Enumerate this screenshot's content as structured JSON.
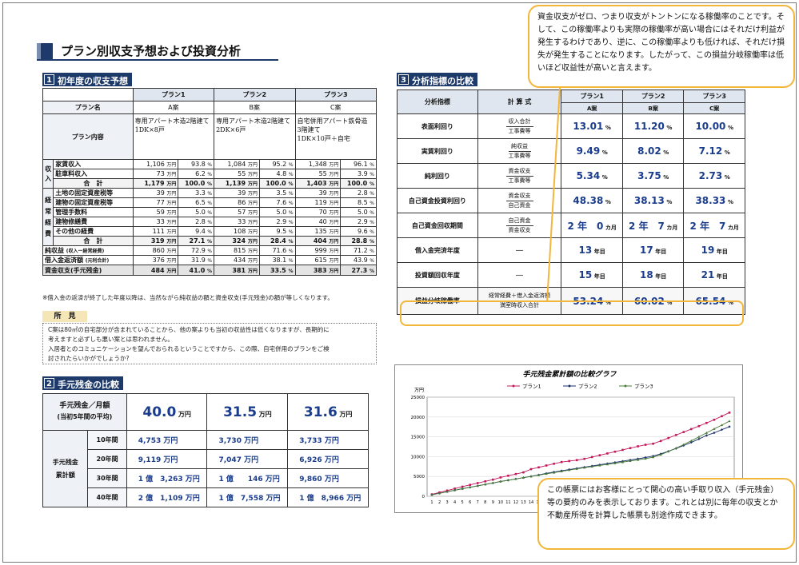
{
  "page_title": "プラン別収支予想および投資分析",
  "sec1": {
    "num": "1",
    "title": "初年度の収支予想"
  },
  "sec2": {
    "num": "2",
    "title": "手元残金の比較"
  },
  "sec3": {
    "num": "3",
    "title": "分析指標の比較"
  },
  "t1": {
    "plans": [
      "プラン1",
      "プラン2",
      "プラン3"
    ],
    "plan_name_label": "プラン名",
    "plan_names": [
      "A案",
      "B案",
      "C案"
    ],
    "content_label": "プラン内容",
    "contents": [
      "専用アパート木造2階建て\n1DK×8戸",
      "専用アパート木造2階建て\n2DK×6戸",
      "自宅併用アパート鉄骨造\n3階建て\n1DK×10戸＋自宅"
    ],
    "income_group": [
      "収",
      "入"
    ],
    "income_rows": [
      {
        "label": "家賃収入",
        "v": [
          [
            "1,106",
            "万円",
            "93.8",
            "%"
          ],
          [
            "1,084",
            "万円",
            "95.2",
            "%"
          ],
          [
            "1,348",
            "万円",
            "96.1",
            "%"
          ]
        ]
      },
      {
        "label": "駐車料収入",
        "v": [
          [
            "73",
            "万円",
            "6.2",
            "%"
          ],
          [
            "55",
            "万円",
            "4.8",
            "%"
          ],
          [
            "55",
            "万円",
            "3.9",
            "%"
          ]
        ]
      }
    ],
    "income_total": {
      "label": "合　計",
      "v": [
        [
          "1,179",
          "万円",
          "100.0",
          "%"
        ],
        [
          "1,139",
          "万円",
          "100.0",
          "%"
        ],
        [
          "1,403",
          "万円",
          "100.0",
          "%"
        ]
      ]
    },
    "expense_group": [
      "経",
      "常",
      "経",
      "費"
    ],
    "expense_rows": [
      {
        "label": "土地の固定資産税等",
        "v": [
          [
            "39",
            "万円",
            "3.3",
            "%"
          ],
          [
            "39",
            "万円",
            "3.5",
            "%"
          ],
          [
            "39",
            "万円",
            "2.8",
            "%"
          ]
        ]
      },
      {
        "label": "建物の固定資産税等",
        "v": [
          [
            "77",
            "万円",
            "6.5",
            "%"
          ],
          [
            "86",
            "万円",
            "7.6",
            "%"
          ],
          [
            "119",
            "万円",
            "8.5",
            "%"
          ]
        ]
      },
      {
        "label": "管理手数料",
        "v": [
          [
            "59",
            "万円",
            "5.0",
            "%"
          ],
          [
            "57",
            "万円",
            "5.0",
            "%"
          ],
          [
            "70",
            "万円",
            "5.0",
            "%"
          ]
        ]
      },
      {
        "label": "建物修繕費",
        "v": [
          [
            "33",
            "万円",
            "2.8",
            "%"
          ],
          [
            "33",
            "万円",
            "2.9",
            "%"
          ],
          [
            "40",
            "万円",
            "2.9",
            "%"
          ]
        ]
      },
      {
        "label": "その他の経費",
        "v": [
          [
            "111",
            "万円",
            "9.4",
            "%"
          ],
          [
            "108",
            "万円",
            "9.5",
            "%"
          ],
          [
            "135",
            "万円",
            "9.6",
            "%"
          ]
        ]
      }
    ],
    "expense_total": {
      "label": "合　計",
      "v": [
        [
          "319",
          "万円",
          "27.1",
          "%"
        ],
        [
          "324",
          "万円",
          "28.4",
          "%"
        ],
        [
          "404",
          "万円",
          "28.8",
          "%"
        ]
      ]
    },
    "net_income": {
      "label": "純収益",
      "sub": "(収入ー経常経費)",
      "v": [
        [
          "860",
          "万円",
          "72.9",
          "%"
        ],
        [
          "815",
          "万円",
          "71.6",
          "%"
        ],
        [
          "999",
          "万円",
          "71.2",
          "%"
        ]
      ]
    },
    "loan_repay": {
      "label": "借入金返済額",
      "sub": "(元利合計)",
      "v": [
        [
          "376",
          "万円",
          "31.9",
          "%"
        ],
        [
          "434",
          "万円",
          "38.1",
          "%"
        ],
        [
          "615",
          "万円",
          "43.9",
          "%"
        ]
      ]
    },
    "cash_balance": {
      "label": "資金収支(手元残金)",
      "v": [
        [
          "484",
          "万円",
          "41.0",
          "%"
        ],
        [
          "381",
          "万円",
          "33.5",
          "%"
        ],
        [
          "383",
          "万円",
          "27.3",
          "%"
        ]
      ]
    },
    "note": "※借入金の返済が終了した年度以降は、当然ながら純収益の額と資金収支(手元残金)の額が等しくなります。"
  },
  "opinion": {
    "label": "所　見",
    "lines": [
      "C案は80㎡の自宅部分が含まれていることから、他の案よりも当初の収益性は低くなりますが、長期的に",
      "考えますと必ずしも悪い案とは思われません。",
      "入居者とのコミュニケーションを望んでおられるということですから、この際、自宅併用のプランをご検",
      "討されたらいかがでしょうか?"
    ]
  },
  "t2": {
    "monthly_label": "手元残金／月額",
    "monthly_sub": "(当初5年間の平均)",
    "monthly": [
      [
        "40.0",
        "万円"
      ],
      [
        "31.5",
        "万円"
      ],
      [
        "31.6",
        "万円"
      ]
    ],
    "cum_label": [
      "手元残金",
      "累計額"
    ],
    "rows": [
      {
        "year": "10年間",
        "v": [
          "4,753 万円",
          "3,730 万円",
          "3,733 万円"
        ]
      },
      {
        "year": "20年間",
        "v": [
          "9,119 万円",
          "7,047 万円",
          "6,926 万円"
        ]
      },
      {
        "year": "30年間",
        "v": [
          "1 億　3,263 万円",
          "1 億　　146 万円",
          "9,860 万円"
        ]
      },
      {
        "year": "40年間",
        "v": [
          "2 億　1,109 万円",
          "1 億　7,558 万円",
          "1 億　8,966 万円"
        ]
      }
    ]
  },
  "t3": {
    "head_metric": "分析指標",
    "head_formula": "計 算 式",
    "plans": [
      "プラン1",
      "プラン2",
      "プラン3"
    ],
    "plan_names": [
      "A案",
      "B案",
      "C案"
    ],
    "rows": [
      {
        "metric": "表面利回り",
        "num": "収入合計",
        "den": "工事費等",
        "v": [
          [
            "13.01",
            "%"
          ],
          [
            "11.20",
            "%"
          ],
          [
            "10.00",
            "%"
          ]
        ]
      },
      {
        "metric": "実質利回り",
        "num": "純収益",
        "den": "工事費等",
        "v": [
          [
            "9.49",
            "%"
          ],
          [
            "8.02",
            "%"
          ],
          [
            "7.12",
            "%"
          ]
        ]
      },
      {
        "metric": "純利回り",
        "num": "資金収支",
        "den": "工事費等",
        "v": [
          [
            "5.34",
            "%"
          ],
          [
            "3.75",
            "%"
          ],
          [
            "2.73",
            "%"
          ]
        ]
      },
      {
        "metric": "自己資金投資利回り",
        "num": "資金収支",
        "den": "自己資金",
        "v": [
          [
            "48.38",
            "%"
          ],
          [
            "38.13",
            "%"
          ],
          [
            "38.33",
            "%"
          ]
        ]
      },
      {
        "metric": "自己資金回収期間",
        "num": "自己資金",
        "den": "資金収支",
        "v": [
          [
            "2 年　0",
            "カ月"
          ],
          [
            "2 年　7",
            "カ月"
          ],
          [
            "2 年　7",
            "カ月"
          ]
        ]
      },
      {
        "metric": "借入金完済年度",
        "formula": "—",
        "v": [
          [
            "13",
            "年目"
          ],
          [
            "17",
            "年目"
          ],
          [
            "19",
            "年目"
          ]
        ]
      },
      {
        "metric": "投資額回収年度",
        "formula": "—",
        "v": [
          [
            "15",
            "年目"
          ],
          [
            "18",
            "年目"
          ],
          [
            "21",
            "年目"
          ]
        ]
      },
      {
        "metric": "損益分岐稼働率",
        "num": "経常経費＋借入金返済額",
        "den": "満室時収入合計",
        "v": [
          [
            "53.24",
            "%"
          ],
          [
            "60.02",
            "%"
          ],
          [
            "65.54",
            "%"
          ]
        ]
      }
    ]
  },
  "bubble_top": "資金収支がゼロ、つまり収支がトントンになる稼働率のことです。そして、この稼働率よりも実際の稼働率が高い場合にはそれだけ利益が発生するわけであり、逆に、この稼働率よりも低ければ、それだけ損失が発生することになります。したがって、この損益分岐稼働率は低いほど収益性が高いと言えます。",
  "bubble_bottom": "この帳票にはお客様にとって関心の高い手取り収入（手元残金）等の要約のみを表示しております。これとは別に毎年の収支とか不動産所得を計算した帳票も別途作成できます。",
  "colors": {
    "navy": "#1d3a6b",
    "bubble_border": "#f2b63a",
    "plan1": "#c2185b",
    "plan2": "#1a2f6b",
    "plan3": "#4a7a3a"
  },
  "chart_data": {
    "type": "line",
    "title": "手元残金累計額の比較グラフ",
    "ylabel": "万円",
    "ylim": [
      0,
      25000
    ],
    "yticks": [
      0,
      5000,
      10000,
      15000,
      20000,
      25000
    ],
    "x": [
      1,
      2,
      3,
      4,
      5,
      6,
      7,
      8,
      9,
      10,
      11,
      12,
      13,
      14,
      15,
      16,
      17,
      18,
      19,
      20,
      21,
      22,
      23,
      24,
      25,
      26,
      27,
      28,
      29,
      30,
      31,
      32,
      33,
      34,
      35,
      36,
      37,
      38,
      39,
      40
    ],
    "series": [
      {
        "name": "プラン1",
        "values": [
          484,
          968,
          1452,
          1936,
          2420,
          2880,
          3330,
          3770,
          4200,
          4753,
          5180,
          5610,
          6030,
          6850,
          7300,
          7760,
          8200,
          8640,
          8890,
          9119,
          9450,
          9900,
          10350,
          10800,
          11250,
          11700,
          12150,
          12600,
          13000,
          13263,
          13950,
          14700,
          15450,
          16200,
          16950,
          17700,
          18500,
          19300,
          20200,
          21109
        ]
      },
      {
        "name": "プラン2",
        "values": [
          381,
          762,
          1143,
          1524,
          1905,
          2265,
          2625,
          2985,
          3345,
          3730,
          4050,
          4380,
          4700,
          5020,
          5400,
          5780,
          6120,
          6450,
          6750,
          7047,
          7350,
          7650,
          7950,
          8250,
          8550,
          8850,
          9150,
          9450,
          9780,
          10146,
          10700,
          11350,
          12050,
          12800,
          13600,
          14450,
          15350,
          16000,
          16800,
          17558
        ]
      },
      {
        "name": "プラン3",
        "values": [
          383,
          766,
          1149,
          1532,
          1915,
          2280,
          2645,
          3010,
          3375,
          3733,
          4050,
          4370,
          4690,
          5010,
          5330,
          5650,
          5970,
          6290,
          6610,
          6926,
          7220,
          7500,
          7780,
          8060,
          8340,
          8620,
          8900,
          9180,
          9500,
          9860,
          10500,
          11300,
          12150,
          13050,
          14000,
          15000,
          16000,
          17000,
          17950,
          18966
        ]
      }
    ],
    "legend": "top"
  }
}
